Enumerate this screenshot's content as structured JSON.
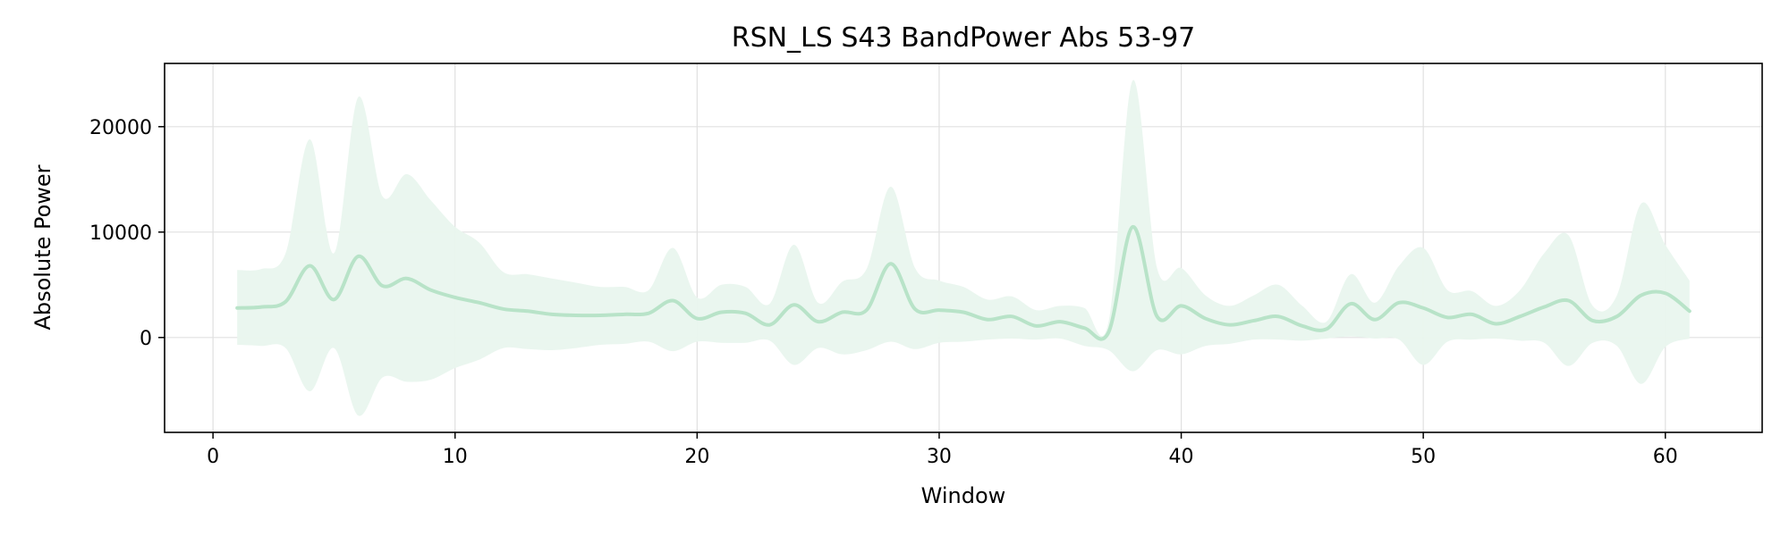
{
  "chart_data": {
    "type": "line",
    "title": "RSN_LS S43 BandPower Abs 53-97",
    "xlabel": "Window",
    "ylabel": "Absolute Power",
    "xlim": [
      -2,
      64
    ],
    "ylim": [
      -9000,
      26000
    ],
    "grid": true,
    "x_ticks": [
      0,
      10,
      20,
      30,
      40,
      50,
      60
    ],
    "y_ticks": [
      0,
      10000,
      20000
    ],
    "colors": {
      "line": "#b8e3c8",
      "band": "#e9f6ee"
    },
    "series": [
      {
        "x": [
          1,
          2,
          3,
          4,
          5,
          6,
          7,
          8,
          9,
          10,
          11,
          12,
          13,
          14,
          15,
          16,
          17,
          18,
          19,
          20,
          21,
          22,
          23,
          24,
          25,
          26,
          27,
          28,
          29,
          30,
          31,
          32,
          33,
          34,
          35,
          36,
          37,
          38,
          39,
          40,
          41,
          42,
          43,
          44,
          45,
          46,
          47,
          48,
          49,
          50,
          51,
          52,
          53,
          54,
          55,
          56,
          57,
          58,
          59,
          60,
          61
        ],
        "mean": [
          2800,
          2900,
          3400,
          6800,
          3600,
          7700,
          4900,
          5600,
          4500,
          3800,
          3300,
          2700,
          2500,
          2200,
          2100,
          2100,
          2200,
          2300,
          3500,
          1800,
          2400,
          2300,
          1200,
          3100,
          1500,
          2400,
          2600,
          7000,
          2700,
          2600,
          2400,
          1700,
          2000,
          1100,
          1500,
          900,
          500,
          10500,
          2000,
          3000,
          1800,
          1200,
          1600,
          2000,
          1100,
          800,
          3200,
          1700,
          3300,
          2800,
          1900,
          2200,
          1300,
          2000,
          2900,
          3500,
          1600,
          2000,
          4000,
          4200,
          2500
        ],
        "upper": [
          6400,
          6500,
          8000,
          18800,
          8000,
          22800,
          13400,
          15500,
          13000,
          10500,
          9000,
          6200,
          6000,
          5600,
          5200,
          4800,
          4800,
          4500,
          8500,
          3800,
          5000,
          4800,
          3200,
          8800,
          3300,
          5300,
          6500,
          14300,
          6600,
          5400,
          4800,
          3600,
          3900,
          2600,
          3000,
          2800,
          1500,
          24400,
          6600,
          6600,
          4000,
          3000,
          4000,
          5000,
          3000,
          1500,
          6000,
          3300,
          6800,
          8500,
          4500,
          4400,
          3000,
          4500,
          8000,
          9700,
          3000,
          4000,
          12700,
          8800,
          5400
        ],
        "lower": [
          -700,
          -800,
          -1000,
          -5100,
          -1000,
          -7400,
          -3800,
          -4200,
          -4000,
          -2900,
          -2100,
          -1000,
          -1100,
          -1200,
          -1000,
          -700,
          -600,
          -400,
          -1300,
          -400,
          -500,
          -500,
          -300,
          -2600,
          -1000,
          -1600,
          -1200,
          -400,
          -1100,
          -500,
          -400,
          -200,
          -100,
          -200,
          -100,
          -800,
          -1200,
          -3200,
          -1200,
          -1600,
          -800,
          -600,
          -200,
          -200,
          -300,
          -100,
          100,
          -100,
          -200,
          -2600,
          -400,
          -200,
          -100,
          -300,
          -500,
          -2700,
          -500,
          -800,
          -4400,
          -900,
          -100
        ]
      }
    ]
  }
}
